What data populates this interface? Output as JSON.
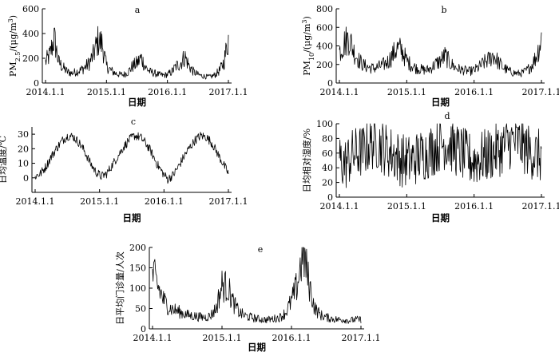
{
  "chart_data": [
    {
      "type": "line",
      "panel": "a",
      "xlabel": "日期",
      "ylabel": "PM2.5/(μg/m³)",
      "ylabel_main": "PM",
      "ylabel_sub": "2.5",
      "ylabel_unit": "/(μg/m",
      "ylabel_sup": "3",
      "ylabel_close": ")",
      "ylim": [
        0,
        600
      ],
      "yticks": [
        "0",
        "200",
        "400",
        "600"
      ],
      "xticks": [
        "2014.1.1",
        "2015.1.1",
        "2016.1.1",
        "2017.1.1"
      ],
      "series": [
        {
          "values": [
            150,
            200,
            320,
            150,
            110,
            80,
            70,
            80,
            90,
            110,
            140,
            200,
            300,
            280,
            120,
            90,
            70,
            60,
            60,
            80,
            120,
            140,
            180,
            110,
            80,
            70,
            60,
            55,
            60,
            80,
            120,
            140,
            190,
            120,
            80,
            60,
            50,
            45,
            45,
            60,
            90,
            150,
            320
          ]
        }
      ]
    },
    {
      "type": "line",
      "panel": "b",
      "xlabel": "日期",
      "ylabel": "PM10/(μg/m³)",
      "ylabel_main": "PM",
      "ylabel_sub": "10",
      "ylabel_unit": "/(μg/m",
      "ylabel_sup": "3",
      "ylabel_close": ")",
      "ylim": [
        0,
        800
      ],
      "yticks": [
        "0",
        "200",
        "400",
        "600",
        "800"
      ],
      "xticks": [
        "2014.1.1",
        "2015.1.1",
        "2016.1.1",
        "2017.1.1"
      ],
      "series": [
        {
          "values": [
            300,
            380,
            430,
            300,
            220,
            170,
            150,
            140,
            150,
            170,
            200,
            260,
            330,
            310,
            210,
            170,
            140,
            130,
            120,
            140,
            180,
            210,
            260,
            190,
            150,
            130,
            120,
            110,
            120,
            150,
            190,
            220,
            270,
            200,
            150,
            120,
            100,
            90,
            95,
            120,
            170,
            260,
            420
          ]
        }
      ]
    },
    {
      "type": "line",
      "panel": "c",
      "xlabel": "日期",
      "ylabel": "日均温度/℃",
      "ylim": [
        -10,
        35
      ],
      "yticks": [
        "0",
        "10",
        "20",
        "30"
      ],
      "xticks": [
        "2014.1.1",
        "2015.1.1",
        "2016.1.1",
        "2017.1.1"
      ],
      "series": [
        {
          "values": [
            1,
            3,
            8,
            15,
            21,
            26,
            29,
            28,
            24,
            18,
            10,
            4,
            1,
            3,
            9,
            15,
            21,
            26,
            29,
            28,
            24,
            18,
            10,
            4,
            -1,
            2,
            8,
            15,
            21,
            26,
            29,
            28,
            24,
            17,
            10,
            3
          ]
        }
      ]
    },
    {
      "type": "line",
      "panel": "d",
      "xlabel": "日期",
      "ylabel": "日均相对湿度/%",
      "ylim": [
        0,
        100
      ],
      "yticks": [
        "0",
        "20",
        "40",
        "60",
        "80",
        "100"
      ],
      "xticks": [
        "2014.1.1",
        "2015.1.1",
        "2016.1.1",
        "2017.1.1"
      ],
      "series": [
        {
          "values": [
            50,
            45,
            55,
            60,
            62,
            70,
            75,
            72,
            65,
            60,
            55,
            50,
            48,
            52,
            56,
            60,
            64,
            70,
            74,
            72,
            66,
            60,
            55,
            50,
            52,
            55,
            58,
            62,
            66,
            72,
            76,
            74,
            68,
            62,
            58,
            55
          ]
        }
      ]
    },
    {
      "type": "line",
      "panel": "e",
      "xlabel": "日期",
      "ylabel": "日平均门诊量/人次",
      "ylim": [
        0,
        200
      ],
      "yticks": [
        "0",
        "50",
        "100",
        "150",
        "200"
      ],
      "xticks": [
        "2014.1.1",
        "2015.1.1",
        "2016.1.1",
        "2017.1.1"
      ],
      "series": [
        {
          "values": [
            120,
            90,
            60,
            45,
            40,
            35,
            30,
            28,
            26,
            25,
            28,
            45,
            95,
            90,
            55,
            35,
            28,
            25,
            22,
            20,
            20,
            22,
            25,
            35,
            60,
            95,
            170,
            100,
            45,
            30,
            25,
            22,
            20,
            20,
            18,
            20,
            20
          ]
        }
      ]
    }
  ]
}
